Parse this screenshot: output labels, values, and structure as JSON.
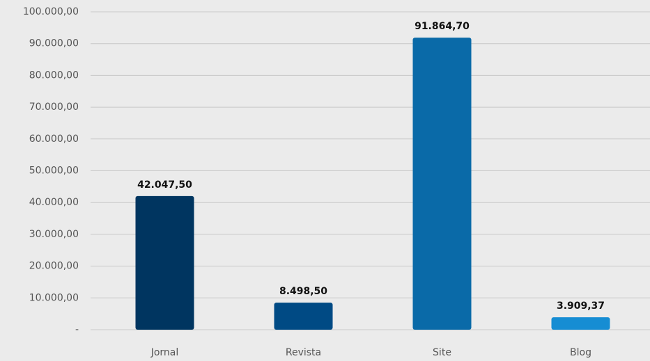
{
  "chart_data": {
    "type": "bar",
    "categories": [
      "Jornal",
      "Revista",
      "Site",
      "Blog"
    ],
    "values": [
      42047.5,
      8498.5,
      91864.7,
      3909.37
    ],
    "value_labels": [
      "42.047,50",
      "8.498,50",
      "91.864,70",
      "3.909,37"
    ],
    "colors": [
      "#003560",
      "#004a84",
      "#0a6aa8",
      "#168dd3"
    ],
    "ylim": [
      0,
      100000
    ],
    "yticks": [
      {
        "value": 0,
        "label": "-"
      },
      {
        "value": 10000,
        "label": "10.000,00"
      },
      {
        "value": 20000,
        "label": "20.000,00"
      },
      {
        "value": 30000,
        "label": "30.000,00"
      },
      {
        "value": 40000,
        "label": "40.000,00"
      },
      {
        "value": 50000,
        "label": "50.000,00"
      },
      {
        "value": 60000,
        "label": "60.000,00"
      },
      {
        "value": 70000,
        "label": "70.000,00"
      },
      {
        "value": 80000,
        "label": "80.000,00"
      },
      {
        "value": 90000,
        "label": "90.000,00"
      },
      {
        "value": 100000,
        "label": "100.000,00"
      }
    ],
    "grid": true
  }
}
